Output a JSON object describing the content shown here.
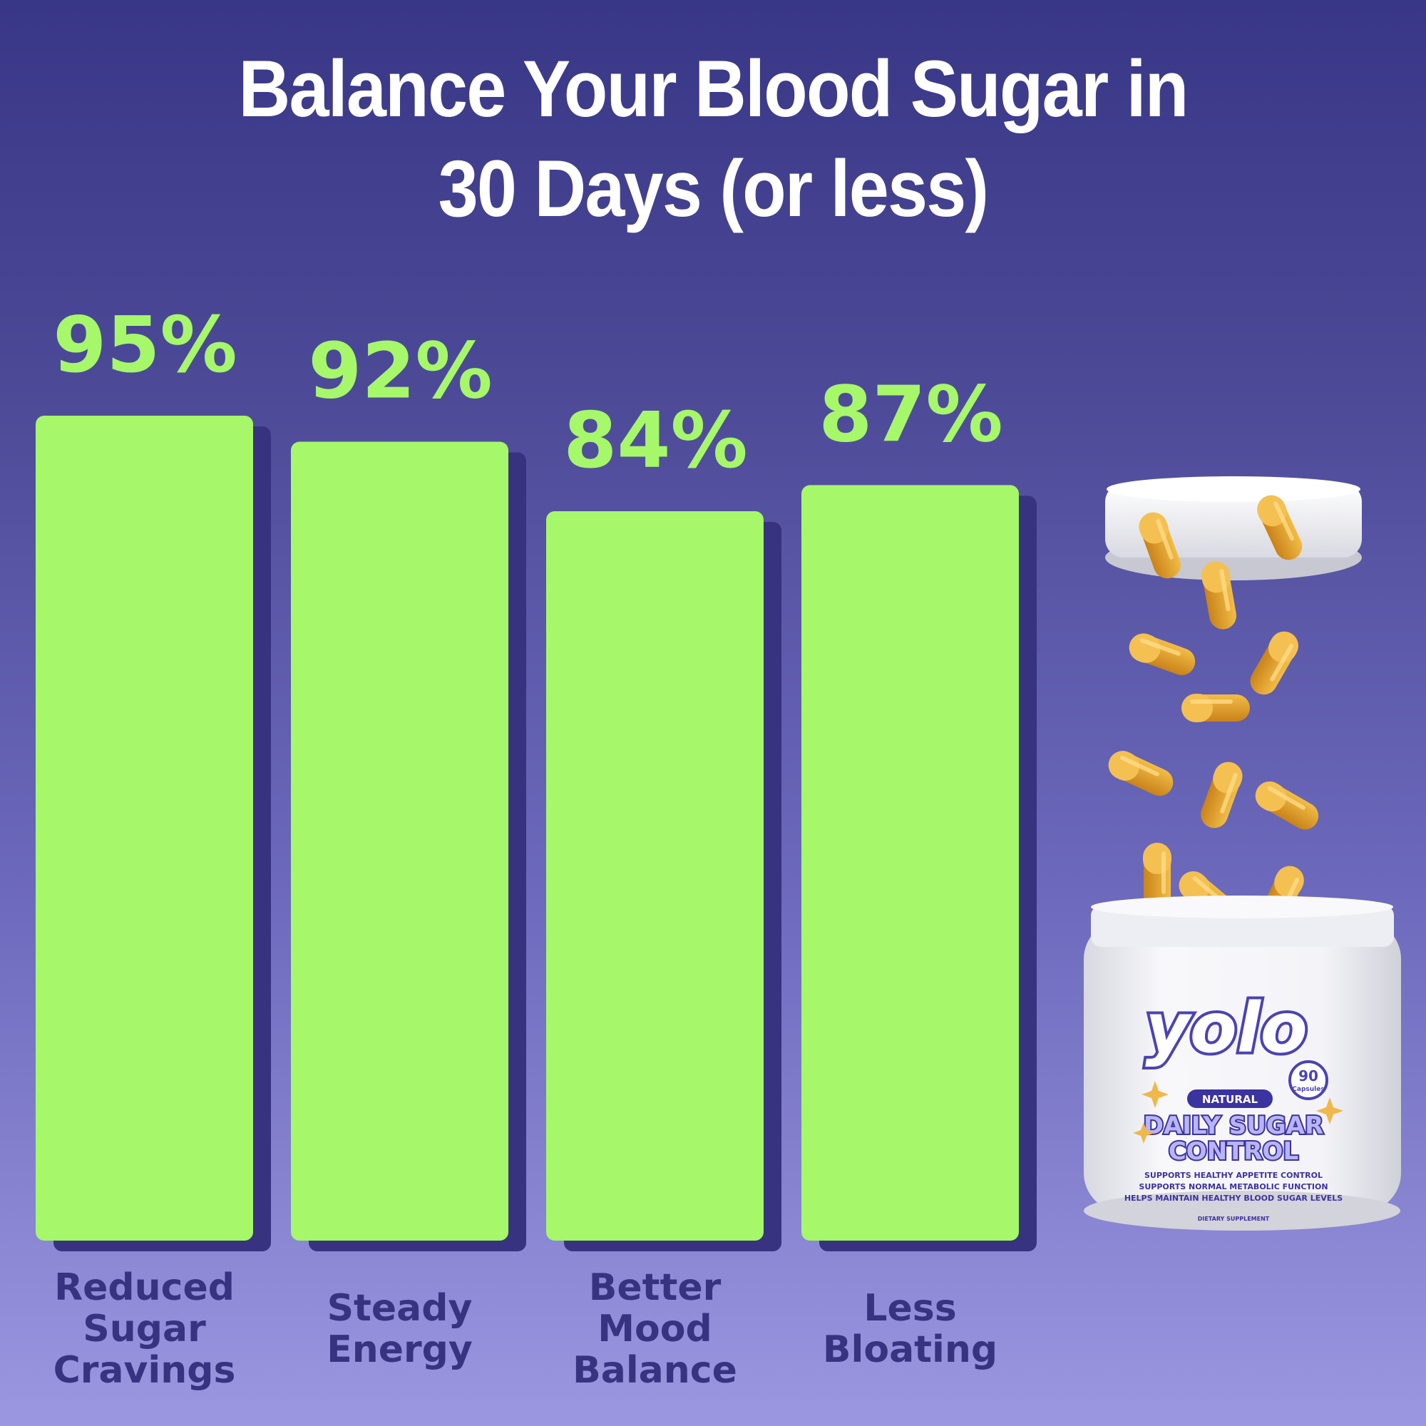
{
  "title_lines": [
    "Balance Your Blood Sugar in",
    "30 Days (or less)"
  ],
  "colors": {
    "bar": "#a6f76a",
    "bar_shadow": "#373381",
    "value_text": "#a6f76a",
    "category_text": "#373381",
    "title_text": "#ffffff",
    "capsule": "#e7a22b"
  },
  "chart_data": {
    "type": "bar",
    "title": "Balance Your Blood Sugar in 30 Days (or less)",
    "categories": [
      "Reduced Sugar Cravings",
      "Steady Energy",
      "Better Mood Balance",
      "Less Bloating"
    ],
    "category_lines": [
      [
        "Reduced",
        "Sugar",
        "Cravings"
      ],
      [
        "Steady",
        "Energy"
      ],
      [
        "Better",
        "Mood",
        "Balance"
      ],
      [
        "Less",
        "Bloating"
      ]
    ],
    "values": [
      95,
      92,
      84,
      87
    ],
    "value_labels": [
      "95%",
      "92%",
      "84%",
      "87%"
    ],
    "xlabel": "",
    "ylabel": "",
    "grid": false,
    "legend": "none"
  },
  "product": {
    "icon": "supplement-jar-with-capsules",
    "brand": "yolo",
    "count_number": "90",
    "count_unit": "Capsules",
    "badge": "NATURAL",
    "name_lines": [
      "DAILY SUGAR",
      "CONTROL"
    ],
    "claims": [
      "SUPPORTS HEALTHY APPETITE CONTROL",
      "SUPPORTS NORMAL METABOLIC FUNCTION",
      "HELPS MAINTAIN HEALTHY BLOOD SUGAR LEVELS"
    ],
    "footer": "DIETARY SUPPLEMENT"
  }
}
